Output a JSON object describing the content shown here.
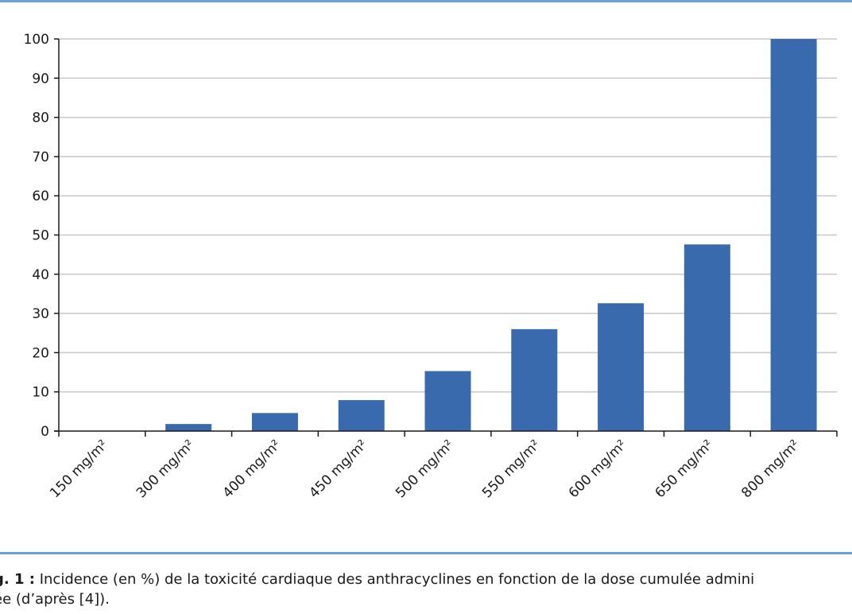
{
  "colors": {
    "accent_rule": "#6a9fd8",
    "bar": "#3a6aae",
    "grid": "#c8c8c8",
    "axis": "#1a1a1a"
  },
  "chart_data": {
    "type": "bar",
    "title": "",
    "xlabel": "",
    "ylabel": "",
    "categories": [
      "150 mg/m²",
      "300 mg/m²",
      "400 mg/m²",
      "450 mg/m²",
      "500 mg/m²",
      "550 mg/m²",
      "600 mg/m²",
      "650 mg/m²",
      "800 mg/m²"
    ],
    "values": [
      0,
      1.8,
      4.6,
      7.9,
      15.3,
      26,
      32.6,
      47.6,
      100
    ],
    "ylim": [
      0,
      100
    ],
    "yticks": [
      0,
      10,
      20,
      30,
      40,
      50,
      60,
      70,
      80,
      90,
      100
    ],
    "grid": true,
    "legend": "none"
  },
  "caption": {
    "fig_label": "g. 1 :",
    "line1": " Incidence (en %) de la toxicité cardiaque des anthracyclines en fonction de la dose cumulée admini",
    "line2": "ée (d’après [4])."
  }
}
